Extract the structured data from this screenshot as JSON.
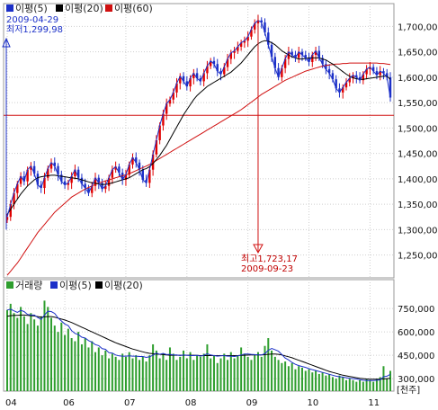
{
  "colors": {
    "ma5": "#1c30c8",
    "ma20": "#000000",
    "ma60": "#d01010",
    "up": "#e00000",
    "down": "#1c30c8",
    "volume": "#2e9e2e",
    "grid": "#cfcfcf",
    "frame": "#9a9a9a"
  },
  "price_legend": [
    {
      "label": "이평(5)",
      "color": "#1c30c8"
    },
    {
      "label": "이평(20)",
      "color": "#000000"
    },
    {
      "label": "이평(60)",
      "color": "#d01010"
    }
  ],
  "volume_legend": [
    {
      "label": "거래량",
      "color": "#2e9e2e"
    },
    {
      "label": "이평(5)",
      "color": "#1c30c8"
    },
    {
      "label": "이평(20)",
      "color": "#000000"
    }
  ],
  "annotations": {
    "low_date": "2009-04-29",
    "low_label": "최저1,299,98",
    "high_label": "최고1,723,17",
    "high_date": "2009-09-23"
  },
  "volume_unit": "[천주]",
  "chart_data": [
    {
      "type": "candlestick",
      "title": "",
      "x_ticks": [
        "04",
        "06",
        "07",
        "08",
        "09",
        "10",
        "11"
      ],
      "y_ticks": [
        1250,
        1300,
        1350,
        1400,
        1450,
        1500,
        1550,
        1600,
        1650,
        1700
      ],
      "y_tick_labels": [
        "1,250,00",
        "1,300,00",
        "1,350,00",
        "1,400,00",
        "1,450,00",
        "1,500,00",
        "1,550,00",
        "1,600,00",
        "1,650,00",
        "1,700,00"
      ],
      "ylim": [
        1205,
        1745
      ],
      "grid": true,
      "reference_level": 1525,
      "low": {
        "date": "2009-04-29",
        "value": 1299.98
      },
      "high": {
        "date": "2009-09-23",
        "value": 1723.17
      },
      "close_series": [
        1325,
        1350,
        1372,
        1390,
        1405,
        1395,
        1418,
        1425,
        1410,
        1388,
        1382,
        1402,
        1420,
        1432,
        1425,
        1408,
        1395,
        1388,
        1392,
        1405,
        1418,
        1402,
        1390,
        1382,
        1372,
        1386,
        1402,
        1392,
        1380,
        1386,
        1402,
        1418,
        1424,
        1412,
        1398,
        1408,
        1428,
        1442,
        1432,
        1418,
        1398,
        1392,
        1418,
        1448,
        1476,
        1505,
        1528,
        1548,
        1556,
        1570,
        1588,
        1602,
        1592,
        1582,
        1598,
        1608,
        1598,
        1592,
        1608,
        1622,
        1632,
        1626,
        1612,
        1606,
        1620,
        1636,
        1648,
        1652,
        1660,
        1668,
        1672,
        1680,
        1694,
        1706,
        1712,
        1708,
        1688,
        1664,
        1640,
        1618,
        1600,
        1618,
        1636,
        1650,
        1644,
        1638,
        1650,
        1644,
        1638,
        1630,
        1644,
        1652,
        1638,
        1626,
        1616,
        1608,
        1596,
        1578,
        1570,
        1580,
        1590,
        1598,
        1604,
        1600,
        1594,
        1606,
        1616,
        1620,
        1612,
        1604,
        1612,
        1608,
        1600,
        1560
      ],
      "ma20_series": [
        1330,
        1340,
        1350,
        1360,
        1370,
        1378,
        1386,
        1392,
        1398,
        1402,
        1404,
        1405,
        1406,
        1407,
        1407,
        1406,
        1405,
        1404,
        1403,
        1402,
        1401,
        1400,
        1398,
        1396,
        1394,
        1392,
        1391,
        1390,
        1389,
        1389,
        1390,
        1392,
        1394,
        1396,
        1398,
        1400,
        1402,
        1406,
        1410,
        1414,
        1418,
        1420,
        1424,
        1430,
        1438,
        1446,
        1456,
        1466,
        1478,
        1490,
        1502,
        1514,
        1526,
        1536,
        1546,
        1556,
        1564,
        1570,
        1576,
        1582,
        1586,
        1590,
        1594,
        1598,
        1602,
        1606,
        1610,
        1616,
        1622,
        1628,
        1636,
        1644,
        1652,
        1660,
        1666,
        1670,
        1672,
        1671,
        1668,
        1664,
        1658,
        1652,
        1648,
        1644,
        1640,
        1638,
        1636,
        1636,
        1637,
        1638,
        1638,
        1638,
        1638,
        1636,
        1634,
        1630,
        1626,
        1621,
        1616,
        1611,
        1606,
        1602,
        1599,
        1597,
        1596,
        1596,
        1597,
        1598,
        1599,
        1600,
        1601,
        1602,
        1602,
        1596
      ],
      "ma60_series": [
        1210,
        1218,
        1226,
        1234,
        1244,
        1254,
        1264,
        1274,
        1284,
        1294,
        1302,
        1310,
        1318,
        1326,
        1334,
        1340,
        1346,
        1352,
        1358,
        1364,
        1368,
        1372,
        1376,
        1380,
        1383,
        1386,
        1389,
        1392,
        1394,
        1396,
        1398,
        1400,
        1402,
        1404,
        1406,
        1408,
        1410,
        1413,
        1416,
        1419,
        1422,
        1425,
        1428,
        1432,
        1436,
        1440,
        1444,
        1448,
        1452,
        1456,
        1460,
        1464,
        1468,
        1472,
        1476,
        1480,
        1484,
        1488,
        1492,
        1496,
        1500,
        1504,
        1508,
        1512,
        1516,
        1520,
        1524,
        1528,
        1532,
        1536,
        1541,
        1546,
        1551,
        1556,
        1561,
        1566,
        1570,
        1574,
        1578,
        1582,
        1586,
        1590,
        1594,
        1597,
        1600,
        1603,
        1606,
        1609,
        1612,
        1614,
        1616,
        1618,
        1620,
        1622,
        1623,
        1624,
        1625,
        1626,
        1626,
        1627,
        1627,
        1628,
        1628,
        1628,
        1628,
        1628,
        1628,
        1628,
        1628,
        1628,
        1627,
        1627,
        1626,
        1625
      ]
    },
    {
      "type": "bar",
      "title": "",
      "y_ticks": [
        300000,
        450000,
        600000,
        750000
      ],
      "y_tick_labels": [
        "300,000",
        "450,000",
        "600,000",
        "750,000"
      ],
      "ylim": [
        220000,
        860000
      ],
      "volume_series": [
        740000,
        780000,
        720000,
        690000,
        760000,
        700000,
        650000,
        720000,
        680000,
        640000,
        700000,
        800000,
        760000,
        690000,
        640000,
        600000,
        660000,
        580000,
        620000,
        560000,
        540000,
        600000,
        520000,
        560000,
        500000,
        540000,
        470000,
        500000,
        450000,
        480000,
        430000,
        460000,
        440000,
        420000,
        460000,
        440000,
        470000,
        430000,
        450000,
        420000,
        440000,
        410000,
        450000,
        520000,
        480000,
        430000,
        460000,
        420000,
        500000,
        460000,
        420000,
        440000,
        480000,
        430000,
        470000,
        420000,
        450000,
        440000,
        460000,
        520000,
        430000,
        450000,
        400000,
        430000,
        460000,
        420000,
        470000,
        430000,
        450000,
        500000,
        460000,
        440000,
        420000,
        450000,
        470000,
        440000,
        510000,
        560000,
        480000,
        440000,
        420000,
        400000,
        410000,
        380000,
        400000,
        360000,
        380000,
        370000,
        350000,
        360000,
        340000,
        350000,
        330000,
        340000,
        320000,
        330000,
        310000,
        300000,
        320000,
        310000,
        290000,
        300000,
        290000,
        280000,
        290000,
        280000,
        300000,
        290000,
        280000,
        300000,
        310000,
        380000,
        300000,
        350000
      ],
      "ma5_series": [
        740000,
        745000,
        735000,
        725000,
        738000,
        730000,
        712000,
        708000,
        708000,
        692000,
        680000,
        708000,
        732000,
        730000,
        718000,
        690000,
        670000,
        650000,
        640000,
        608000,
        590000,
        582000,
        566000,
        560000,
        544000,
        534000,
        518000,
        512000,
        492000,
        488000,
        466000,
        464000,
        452000,
        446000,
        444000,
        444000,
        446000,
        444000,
        444000,
        442000,
        442000,
        436000,
        440000,
        450000,
        464000,
        456000,
        462000,
        454000,
        456000,
        452000,
        452000,
        448000,
        452000,
        450000,
        448000,
        448000,
        450000,
        444000,
        450000,
        460000,
        452000,
        448000,
        444000,
        446000,
        448000,
        444000,
        444000,
        442000,
        446000,
        452000,
        458000,
        458000,
        456000,
        454000,
        452000,
        452000,
        460000,
        482000,
        494000,
        486000,
        476000,
        454000,
        432000,
        420000,
        404000,
        392000,
        384000,
        378000,
        372000,
        364000,
        358000,
        352000,
        346000,
        340000,
        334000,
        328000,
        322000,
        316000,
        312000,
        310000,
        306000,
        302000,
        300000,
        298000,
        294000,
        290000,
        288000,
        288000,
        288000,
        290000,
        292000,
        312000,
        316000,
        328000
      ],
      "ma20_series": [
        700000,
        704000,
        706000,
        706000,
        708000,
        708000,
        706000,
        704000,
        702000,
        698000,
        694000,
        696000,
        698000,
        698000,
        694000,
        688000,
        682000,
        676000,
        668000,
        660000,
        650000,
        640000,
        630000,
        620000,
        610000,
        600000,
        590000,
        580000,
        570000,
        560000,
        550000,
        540000,
        530000,
        522000,
        514000,
        506000,
        498000,
        490000,
        484000,
        478000,
        472000,
        466000,
        462000,
        460000,
        458000,
        456000,
        454000,
        452000,
        450000,
        450000,
        450000,
        450000,
        450000,
        450000,
        450000,
        450000,
        449000,
        448000,
        448000,
        448000,
        448000,
        448000,
        448000,
        448000,
        448000,
        448000,
        448000,
        448000,
        448000,
        449000,
        450000,
        451000,
        452000,
        452000,
        452000,
        452000,
        454000,
        456000,
        458000,
        458000,
        456000,
        452000,
        446000,
        440000,
        434000,
        426000,
        418000,
        410000,
        402000,
        394000,
        386000,
        378000,
        370000,
        362000,
        354000,
        346000,
        340000,
        334000,
        328000,
        322000,
        318000,
        314000,
        310000,
        306000,
        302000,
        300000,
        298000,
        296000,
        296000,
        296000,
        296000,
        298000,
        300000,
        302000
      ]
    }
  ]
}
